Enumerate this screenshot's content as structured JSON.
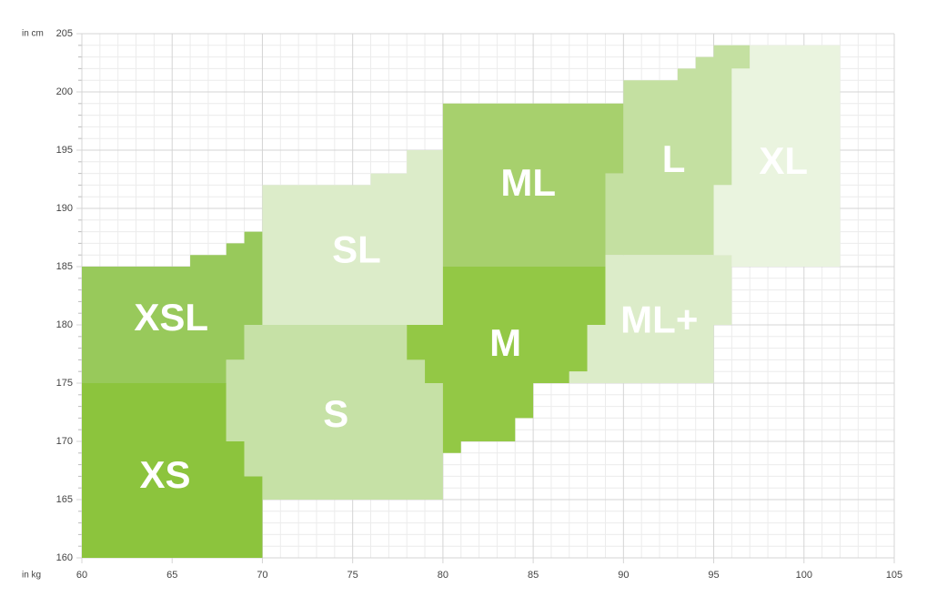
{
  "chart_data": {
    "type": "polygon",
    "y_axis_label": "in cm",
    "x_axis_label": "in kg",
    "xlim": [
      60,
      105
    ],
    "ylim": [
      160,
      205
    ],
    "xticks": [
      60,
      65,
      70,
      75,
      80,
      85,
      90,
      95,
      100,
      105
    ],
    "yticks": [
      160,
      165,
      170,
      175,
      180,
      185,
      190,
      195,
      200,
      205
    ],
    "grid": true,
    "regions": [
      {
        "name": "XS",
        "color": "#8cc43d",
        "points": [
          [
            60,
            160
          ],
          [
            70,
            160
          ],
          [
            70,
            167
          ],
          [
            69,
            167
          ],
          [
            69,
            170
          ],
          [
            68,
            170
          ],
          [
            68,
            175
          ],
          [
            60,
            175
          ]
        ]
      },
      {
        "name": "XSL",
        "color": "#98c95b",
        "points": [
          [
            60,
            175
          ],
          [
            68,
            175
          ],
          [
            68,
            177
          ],
          [
            69,
            177
          ],
          [
            69,
            180
          ],
          [
            70,
            180
          ],
          [
            70,
            188
          ],
          [
            69,
            188
          ],
          [
            69,
            187
          ],
          [
            68,
            187
          ],
          [
            68,
            186
          ],
          [
            66,
            186
          ],
          [
            66,
            185
          ],
          [
            60,
            185
          ]
        ]
      },
      {
        "name": "S",
        "color": "#c6e1a6",
        "points": [
          [
            69,
            180
          ],
          [
            78,
            180
          ],
          [
            78,
            177
          ],
          [
            79,
            177
          ],
          [
            79,
            175
          ],
          [
            80,
            175
          ],
          [
            80,
            165
          ],
          [
            70,
            165
          ],
          [
            70,
            167
          ],
          [
            69,
            167
          ],
          [
            69,
            170
          ],
          [
            68,
            170
          ],
          [
            68,
            177
          ],
          [
            69,
            177
          ]
        ]
      },
      {
        "name": "SL",
        "color": "#dcecc9",
        "points": [
          [
            70,
            180
          ],
          [
            80,
            180
          ],
          [
            80,
            195
          ],
          [
            78,
            195
          ],
          [
            78,
            193
          ],
          [
            76,
            193
          ],
          [
            76,
            192
          ],
          [
            70,
            192
          ]
        ]
      },
      {
        "name": "M",
        "color": "#93c845",
        "points": [
          [
            80,
            185
          ],
          [
            89,
            185
          ],
          [
            89,
            180
          ],
          [
            88,
            180
          ],
          [
            88,
            176
          ],
          [
            87,
            176
          ],
          [
            87,
            175
          ],
          [
            85,
            175
          ],
          [
            85,
            172
          ],
          [
            84,
            172
          ],
          [
            84,
            170
          ],
          [
            81,
            170
          ],
          [
            81,
            169
          ],
          [
            80,
            169
          ],
          [
            80,
            175
          ],
          [
            79,
            175
          ],
          [
            79,
            177
          ],
          [
            78,
            177
          ],
          [
            78,
            180
          ],
          [
            80,
            180
          ]
        ]
      },
      {
        "name": "ML",
        "color": "#a7d06d",
        "points": [
          [
            80,
            185
          ],
          [
            89,
            185
          ],
          [
            89,
            193
          ],
          [
            90,
            193
          ],
          [
            90,
            199
          ],
          [
            80,
            199
          ]
        ]
      },
      {
        "name": "L",
        "color": "#c4e0a1",
        "points": [
          [
            89,
            186
          ],
          [
            95,
            186
          ],
          [
            95,
            192
          ],
          [
            96,
            192
          ],
          [
            96,
            202
          ],
          [
            97,
            202
          ],
          [
            97,
            204
          ],
          [
            95,
            204
          ],
          [
            95,
            203
          ],
          [
            94,
            203
          ],
          [
            94,
            202
          ],
          [
            93,
            202
          ],
          [
            93,
            201
          ],
          [
            90,
            201
          ],
          [
            90,
            193
          ],
          [
            89,
            193
          ]
        ]
      },
      {
        "name": "ML+",
        "color": "#dcecc9",
        "points": [
          [
            89,
            186
          ],
          [
            96,
            186
          ],
          [
            96,
            180
          ],
          [
            95,
            180
          ],
          [
            95,
            175
          ],
          [
            87,
            175
          ],
          [
            87,
            176
          ],
          [
            88,
            176
          ],
          [
            88,
            180
          ],
          [
            89,
            180
          ]
        ]
      },
      {
        "name": "XL",
        "color": "#eaf4df",
        "points": [
          [
            97,
            204
          ],
          [
            102,
            204
          ],
          [
            102,
            185
          ],
          [
            96,
            185
          ],
          [
            96,
            186
          ],
          [
            95,
            186
          ],
          [
            95,
            192
          ],
          [
            96,
            192
          ],
          [
            96,
            202
          ],
          [
            97,
            202
          ]
        ]
      }
    ]
  }
}
